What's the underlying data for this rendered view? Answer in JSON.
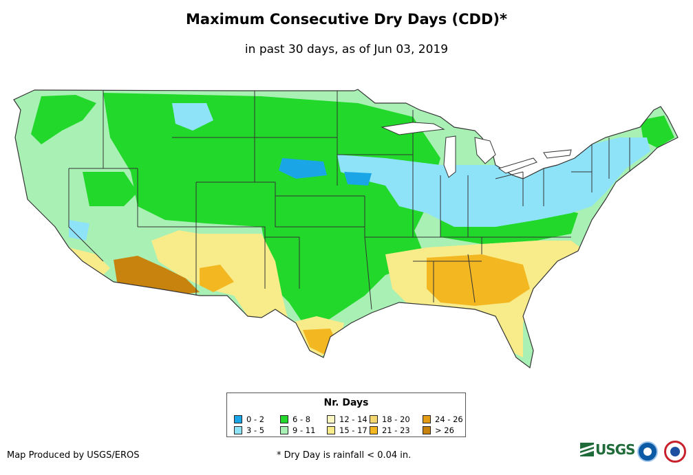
{
  "title": "Maximum Consecutive Dry Days (CDD)*",
  "subtitle": "in past 30 days, as of Jun 03, 2019",
  "legend": {
    "title": "Nr. Days",
    "items": [
      {
        "label": "0 - 2",
        "color": "#1aa6e6"
      },
      {
        "label": "3 - 5",
        "color": "#8ee3f8"
      },
      {
        "label": "6 - 8",
        "color": "#22d82a"
      },
      {
        "label": "9 - 11",
        "color": "#a8f0b4"
      },
      {
        "label": "12 - 14",
        "color": "#fbf7c2"
      },
      {
        "label": "15 - 17",
        "color": "#f8ec8a"
      },
      {
        "label": "18 - 20",
        "color": "#f5d771"
      },
      {
        "label": "21 - 23",
        "color": "#f2b721"
      },
      {
        "label": "24 - 26",
        "color": "#e59c15"
      },
      {
        "label": "> 26",
        "color": "#c8830f"
      }
    ]
  },
  "credit": "Map Produced by USGS/EROS",
  "footnote": "* Dry Day is rainfall < 0.04 in.",
  "logos": {
    "usgs_text": "USGS"
  }
}
